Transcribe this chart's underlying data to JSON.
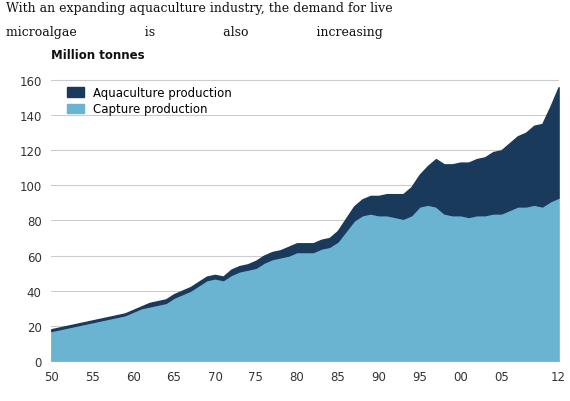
{
  "years": [
    50,
    51,
    52,
    53,
    54,
    55,
    56,
    57,
    58,
    59,
    60,
    61,
    62,
    63,
    64,
    65,
    66,
    67,
    68,
    69,
    70,
    71,
    72,
    73,
    74,
    75,
    76,
    77,
    78,
    79,
    80,
    81,
    82,
    83,
    84,
    85,
    86,
    87,
    88,
    89,
    90,
    91,
    92,
    93,
    94,
    95,
    96,
    97,
    98,
    99,
    100,
    101,
    102,
    103,
    104,
    105,
    106,
    107,
    108,
    109,
    110,
    111,
    112
  ],
  "capture": [
    17,
    18,
    19,
    20,
    21,
    22,
    23,
    24,
    25,
    26,
    28,
    30,
    31,
    32,
    33,
    36,
    38,
    40,
    43,
    46,
    47,
    46,
    49,
    51,
    52,
    53,
    56,
    58,
    59,
    60,
    62,
    62,
    62,
    64,
    65,
    68,
    74,
    80,
    83,
    84,
    83,
    83,
    82,
    81,
    83,
    88,
    89,
    88,
    84,
    83,
    83,
    82,
    83,
    83,
    84,
    84,
    86,
    88,
    88,
    89,
    88,
    91,
    93
  ],
  "aquaculture": [
    1,
    1,
    1,
    1,
    1,
    1,
    1,
    1,
    1,
    1,
    1,
    1,
    2,
    2,
    2,
    2,
    2,
    2,
    2,
    2,
    2,
    2,
    3,
    3,
    3,
    4,
    4,
    4,
    4,
    5,
    5,
    5,
    5,
    5,
    5,
    6,
    7,
    8,
    9,
    10,
    11,
    12,
    13,
    14,
    16,
    18,
    22,
    27,
    28,
    29,
    30,
    31,
    32,
    33,
    35,
    36,
    38,
    40,
    42,
    45,
    47,
    54,
    63
  ],
  "capture_color": "#6ab4d2",
  "aquaculture_color": "#1a3a5c",
  "ylabel": "Million tonnes",
  "ylim": [
    0,
    165
  ],
  "yticks": [
    0,
    20,
    40,
    60,
    80,
    100,
    120,
    140,
    160
  ],
  "xtick_labels": [
    "50",
    "55",
    "60",
    "65",
    "70",
    "75",
    "80",
    "85",
    "90",
    "95",
    "00",
    "05",
    "12"
  ],
  "xtick_positions": [
    50,
    55,
    60,
    65,
    70,
    75,
    80,
    85,
    90,
    95,
    100,
    105,
    112
  ],
  "legend_aquaculture": "Aquaculture production",
  "legend_capture": "Capture production",
  "background_color": "#ffffff",
  "grid_color": "#cccccc",
  "text_line1": "With an expanding aquaculture industry, the demand for live",
  "text_line2": "microalgae                 is                 also                 increasing"
}
